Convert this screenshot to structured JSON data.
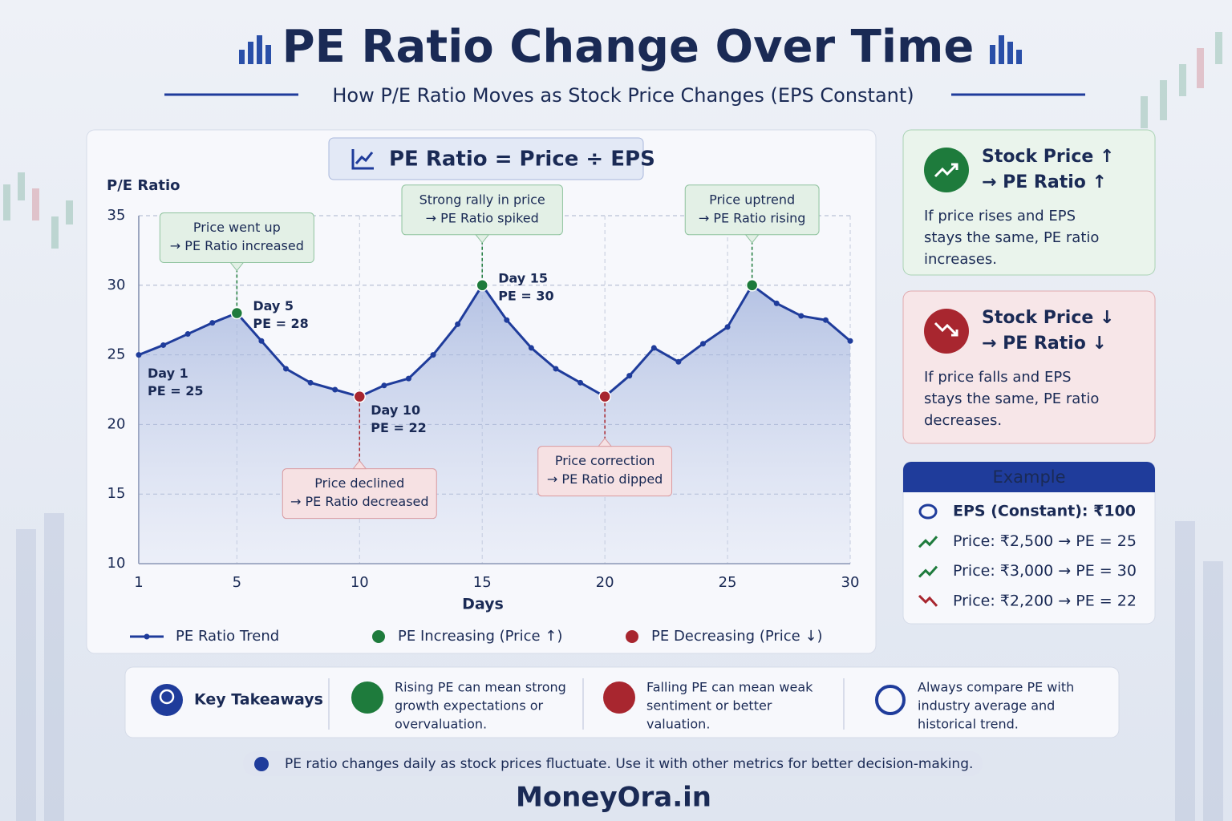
{
  "header": {
    "title": "PE Ratio Change Over Time",
    "subtitle": "How P/E Ratio Moves as Stock Price Changes (EPS Constant)"
  },
  "chart_data": {
    "type": "line",
    "formula": "PE Ratio = Price ÷ EPS",
    "y_label": "P/E Ratio",
    "x_label": "Days",
    "x": [
      1,
      2,
      3,
      4,
      5,
      6,
      7,
      8,
      9,
      10,
      11,
      12,
      13,
      14,
      15,
      16,
      17,
      18,
      19,
      20,
      21,
      22,
      23,
      24,
      25,
      26,
      27,
      28,
      29,
      30
    ],
    "series": [
      {
        "name": "PE Ratio Trend",
        "color": "#1f3c9b",
        "values": [
          25,
          25.7,
          26.5,
          27.3,
          28,
          26,
          24,
          23,
          22.5,
          22,
          22.8,
          23.3,
          25,
          27.2,
          30,
          27.5,
          25.5,
          24,
          23,
          22,
          23.5,
          25.5,
          24.5,
          25.8,
          27,
          30,
          28.7,
          27.8,
          27.5,
          26
        ]
      }
    ],
    "xlim": [
      1,
      30
    ],
    "ylim": [
      10,
      35
    ],
    "xticks": [
      1,
      5,
      10,
      15,
      20,
      25,
      30
    ],
    "yticks": [
      10,
      15,
      20,
      25,
      30,
      35
    ],
    "grid": true,
    "markers": [
      {
        "name": "PE Increasing (Price ↑)",
        "color": "#1e7b3c",
        "x": [
          5,
          15,
          26
        ],
        "labels": [
          [
            "Day 5",
            "PE = 28"
          ],
          [
            "Day 15",
            "PE = 30"
          ],
          []
        ],
        "callouts": [
          [
            "Price went up",
            "→ PE Ratio increased"
          ],
          [
            "Strong rally in price",
            "→ PE Ratio spiked"
          ],
          [
            "Price uptrend",
            "→ PE Ratio rising"
          ]
        ]
      },
      {
        "name": "PE Decreasing (Price ↓)",
        "color": "#a8262f",
        "x": [
          10,
          20
        ],
        "labels": [
          [
            "Day 10",
            "PE = 22"
          ],
          []
        ],
        "callouts": [
          [
            "Price declined",
            "→ PE Ratio decreased"
          ],
          [
            "Price correction",
            "→ PE Ratio dipped"
          ]
        ]
      }
    ],
    "annotations": [
      {
        "x": 1,
        "lines": [
          "Day 1",
          "PE = 25"
        ]
      }
    ]
  },
  "cards": [
    {
      "title": [
        "Stock Price ↑",
        "→ PE Ratio ↑"
      ],
      "body": [
        "If price rises and EPS",
        "stays the same, PE ratio",
        "increases."
      ]
    },
    {
      "title": [
        "Stock Price ↓",
        "→ PE Ratio ↓"
      ],
      "body": [
        "If price falls and EPS",
        "stays the same, PE ratio",
        "decreases."
      ]
    }
  ],
  "example": {
    "title": "Example",
    "rows": [
      "EPS (Constant): ₹100",
      "Price: ₹2,500  →  PE = 25",
      "Price: ₹3,000  →  PE = 30",
      "Price: ₹2,200  →  PE = 22"
    ]
  },
  "takeaways": {
    "title": "Key Takeaways",
    "items": [
      [
        "Rising PE can mean strong",
        "growth expectations or",
        "overvaluation."
      ],
      [
        "Falling PE can mean weak",
        "sentiment or better",
        "valuation."
      ],
      [
        "Always compare PE with",
        "industry average and",
        "historical trend."
      ]
    ]
  },
  "note": "PE ratio changes daily as stock prices fluctuate. Use it with other metrics for better decision-making.",
  "brand": "MoneyOra.in"
}
